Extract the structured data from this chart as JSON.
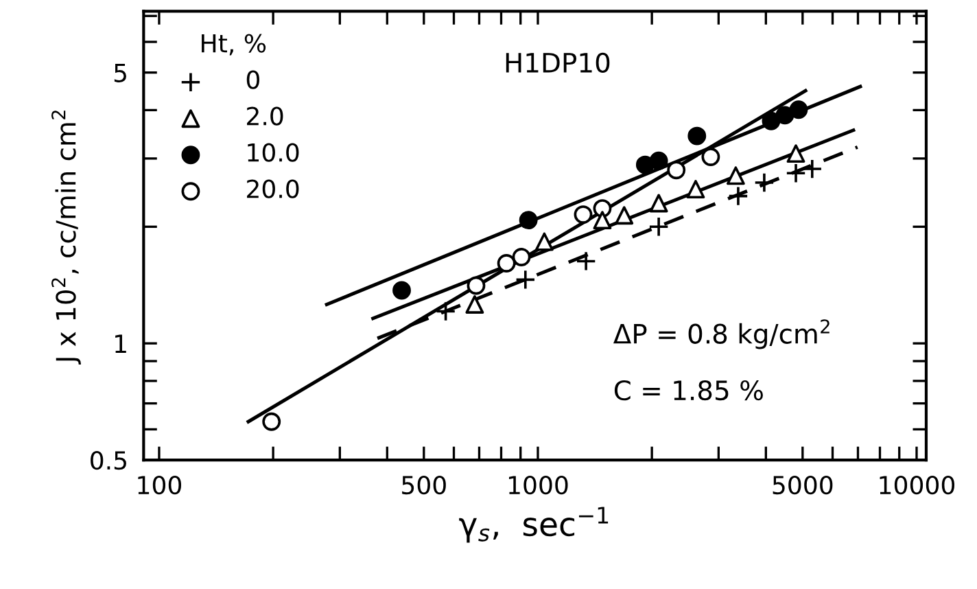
{
  "chart_data": {
    "type": "scatter",
    "xlabel": "γ$_{s}$,  sec$^{−1}$",
    "ylabel": "J x 10$^{2}$, cc/min cm$^{2}$",
    "legend_title": "Ht, %",
    "legend": "top left",
    "log": "xy",
    "grid": false,
    "xlim": [
      91,
      10600
    ],
    "ylim": [
      0.5,
      7.2
    ],
    "xticks": [
      100,
      {
        "value": 200,
        "label": null
      },
      {
        "value": 300,
        "label": null
      },
      {
        "value": 400,
        "label": null
      },
      500,
      {
        "value": 600,
        "label": null
      },
      {
        "value": 700,
        "label": null
      },
      {
        "value": 800,
        "label": null
      },
      {
        "value": 900,
        "label": null
      },
      1000,
      {
        "value": 2000,
        "label": null
      },
      {
        "value": 3000,
        "label": null
      },
      {
        "value": 4000,
        "label": null
      },
      5000,
      {
        "value": 6000,
        "label": null
      },
      {
        "value": 7000,
        "label": null
      },
      {
        "value": 8000,
        "label": null
      },
      {
        "value": 9000,
        "label": null
      },
      10000
    ],
    "yticks": [
      0.5,
      {
        "value": 0.6,
        "label": null
      },
      {
        "value": 0.7,
        "label": null
      },
      {
        "value": 0.8,
        "label": null
      },
      {
        "value": 0.9,
        "label": null
      },
      1,
      {
        "value": 2,
        "label": null
      },
      {
        "value": 3,
        "label": null
      },
      {
        "value": 4,
        "label": null
      },
      5,
      {
        "value": 6,
        "label": null
      },
      {
        "value": 7,
        "label": null
      }
    ],
    "annotations": [
      "H1DP10",
      "ΔP = 0.8 kg/cm$^{2}$",
      "C = 1.85 %"
    ],
    "series": [
      {
        "name": "0",
        "color": "#000000",
        "marker": "cross",
        "x": [
          571,
          927,
          1340,
          2085,
          3380,
          3960,
          4800,
          5300
        ],
        "values": [
          1.21,
          1.46,
          1.63,
          2.0,
          2.4,
          2.6,
          2.75,
          2.82
        ]
      },
      {
        "name": "2.0",
        "color": "#ffffff",
        "marker": "triangle",
        "x": [
          681,
          1040,
          1480,
          1690,
          2085,
          2610,
          3330,
          4800
        ],
        "values": [
          1.26,
          1.83,
          2.08,
          2.14,
          2.3,
          2.5,
          2.71,
          3.09
        ]
      },
      {
        "name": "10.0",
        "color": "#000000",
        "marker": "circle",
        "x": [
          437,
          944,
          1920,
          2085,
          2630,
          4130,
          4490,
          4880
        ],
        "values": [
          1.37,
          2.08,
          2.89,
          2.96,
          3.43,
          3.75,
          3.88,
          4.01
        ]
      },
      {
        "name": "20.0",
        "color": "#ffffff",
        "marker": "circle",
        "x": [
          198,
          687,
          826,
          905,
          1317,
          1480,
          2320,
          2860
        ],
        "values": [
          0.628,
          1.41,
          1.61,
          1.67,
          2.15,
          2.23,
          2.8,
          3.03
        ]
      },
      {
        "type": "line",
        "color": "#000000",
        "line_style": "dashed",
        "x": [
          377,
          6980
        ],
        "values": [
          1.03,
          3.21
        ]
      },
      {
        "type": "line",
        "color": "#000000",
        "line_style": "solid",
        "x": [
          367,
          6810
        ],
        "values": [
          1.16,
          3.55
        ]
      },
      {
        "type": "line",
        "color": "#000000",
        "line_style": "solid",
        "x": [
          277,
          7100
        ],
        "values": [
          1.26,
          4.6
        ]
      },
      {
        "type": "line",
        "color": "#000000",
        "line_style": "solid",
        "x": [
          172,
          5090
        ],
        "values": [
          0.628,
          4.49
        ]
      }
    ]
  }
}
